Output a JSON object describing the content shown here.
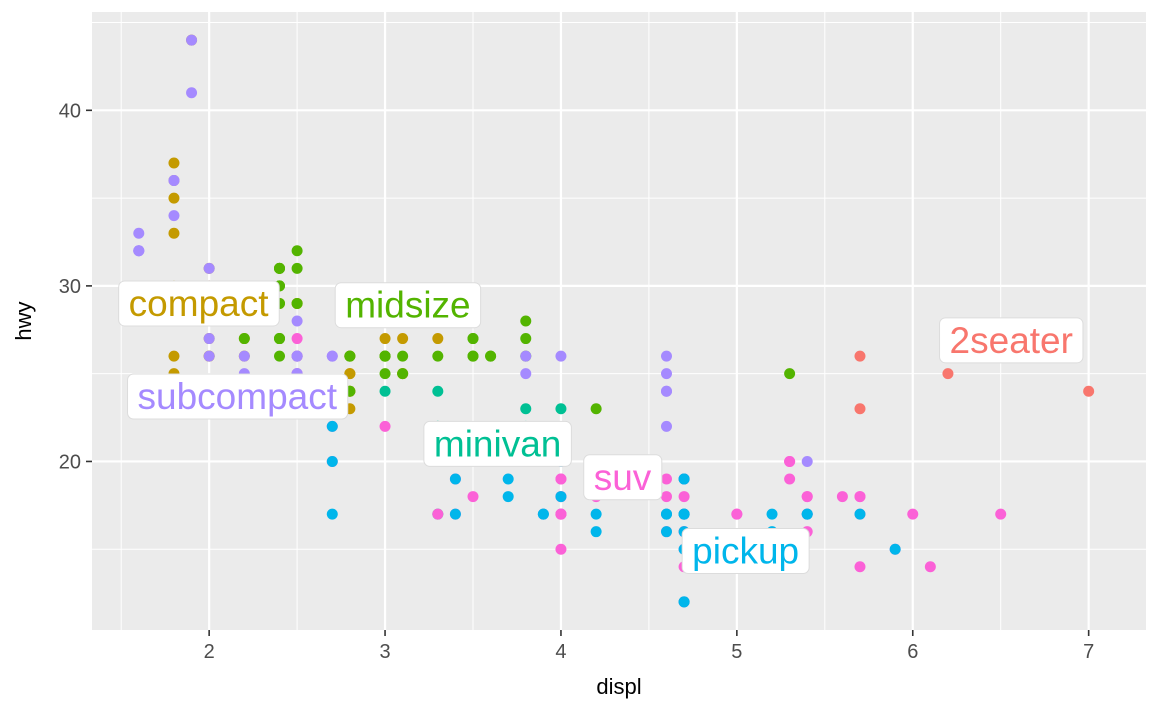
{
  "chart_data": {
    "type": "scatter",
    "xlabel": "displ",
    "ylabel": "hwy",
    "xlim": [
      1.334,
      7.326
    ],
    "ylim": [
      10.4,
      45.6
    ],
    "x_major_ticks": [
      2,
      3,
      4,
      5,
      6,
      7
    ],
    "x_minor_ticks": [
      1.5,
      2.5,
      3.5,
      4.5,
      5.5,
      6.5
    ],
    "y_major_ticks": [
      20,
      30,
      40
    ],
    "y_minor_ticks": [
      15,
      25,
      35,
      45
    ],
    "panel_bg": "#EBEBEB",
    "grid_color": "#FFFFFF",
    "tick_color": "#333333",
    "tick_label_color": "#4D4D4D",
    "legend": "none",
    "series": [
      {
        "name": "compact",
        "color": "#C49A00",
        "points": [
          [
            1.8,
            29
          ],
          [
            1.8,
            29
          ],
          [
            2.0,
            31
          ],
          [
            2.0,
            30
          ],
          [
            2.8,
            26
          ],
          [
            2.8,
            26
          ],
          [
            3.1,
            27
          ],
          [
            1.8,
            26
          ],
          [
            1.8,
            25
          ],
          [
            2.0,
            28
          ],
          [
            2.0,
            27
          ],
          [
            2.8,
            25
          ],
          [
            2.8,
            25
          ],
          [
            3.1,
            25
          ],
          [
            3.1,
            25
          ],
          [
            2.2,
            26
          ],
          [
            2.2,
            27
          ],
          [
            2.4,
            29
          ],
          [
            2.4,
            31
          ],
          [
            3.0,
            26
          ],
          [
            3.0,
            27
          ],
          [
            3.3,
            27
          ],
          [
            1.8,
            30
          ],
          [
            1.8,
            33
          ],
          [
            1.8,
            35
          ],
          [
            1.8,
            36
          ],
          [
            1.8,
            37
          ],
          [
            2.0,
            26
          ],
          [
            2.0,
            29
          ],
          [
            2.0,
            28
          ],
          [
            2.0,
            29
          ],
          [
            2.8,
            24
          ],
          [
            1.9,
            44
          ],
          [
            2.0,
            26
          ],
          [
            2.0,
            29
          ],
          [
            2.0,
            28
          ],
          [
            2.0,
            29
          ],
          [
            2.5,
            29
          ],
          [
            2.5,
            29
          ],
          [
            2.8,
            23
          ],
          [
            2.8,
            24
          ]
        ]
      },
      {
        "name": "midsize",
        "color": "#53B400",
        "points": [
          [
            2.8,
            24
          ],
          [
            3.1,
            25
          ],
          [
            4.2,
            23
          ],
          [
            2.4,
            27
          ],
          [
            2.4,
            30
          ],
          [
            3.1,
            29
          ],
          [
            3.5,
            27
          ],
          [
            3.6,
            26
          ],
          [
            2.4,
            26
          ],
          [
            2.4,
            27
          ],
          [
            2.4,
            30
          ],
          [
            2.4,
            31
          ],
          [
            2.5,
            26
          ],
          [
            2.5,
            29
          ],
          [
            3.3,
            26
          ],
          [
            2.4,
            29
          ],
          [
            2.4,
            27
          ],
          [
            2.5,
            31
          ],
          [
            2.5,
            32
          ],
          [
            3.5,
            26
          ],
          [
            3.5,
            27
          ],
          [
            3.0,
            25
          ],
          [
            3.0,
            26
          ],
          [
            3.5,
            26
          ],
          [
            3.1,
            26
          ],
          [
            3.8,
            26
          ],
          [
            3.8,
            27
          ],
          [
            3.8,
            28
          ],
          [
            5.3,
            25
          ],
          [
            2.2,
            27
          ],
          [
            2.2,
            29
          ],
          [
            2.4,
            31
          ],
          [
            2.4,
            31
          ],
          [
            3.0,
            26
          ],
          [
            3.0,
            26
          ],
          [
            3.5,
            28
          ],
          [
            1.8,
            29
          ],
          [
            1.8,
            29
          ],
          [
            2.0,
            28
          ],
          [
            2.0,
            29
          ],
          [
            2.8,
            26
          ],
          [
            2.8,
            26
          ],
          [
            3.6,
            26
          ]
        ]
      },
      {
        "name": "minivan",
        "color": "#00C094",
        "points": [
          [
            2.4,
            24
          ],
          [
            3.0,
            24
          ],
          [
            3.3,
            22
          ],
          [
            3.3,
            22
          ],
          [
            3.3,
            24
          ],
          [
            3.3,
            22
          ],
          [
            3.3,
            17
          ],
          [
            3.8,
            22
          ],
          [
            3.8,
            21
          ],
          [
            3.8,
            23
          ],
          [
            4.0,
            23
          ]
        ]
      },
      {
        "name": "suv",
        "color": "#FB61D7",
        "points": [
          [
            5.3,
            20
          ],
          [
            5.3,
            15
          ],
          [
            5.3,
            20
          ],
          [
            5.7,
            17
          ],
          [
            6.0,
            17
          ],
          [
            5.3,
            14
          ],
          [
            5.3,
            19
          ],
          [
            5.7,
            14
          ],
          [
            6.5,
            17
          ],
          [
            3.9,
            17
          ],
          [
            4.7,
            17
          ],
          [
            4.7,
            12
          ],
          [
            4.7,
            17
          ],
          [
            4.7,
            16
          ],
          [
            4.7,
            18
          ],
          [
            5.2,
            15
          ],
          [
            5.9,
            15
          ],
          [
            4.6,
            17
          ],
          [
            5.4,
            17
          ],
          [
            5.4,
            18
          ],
          [
            4.0,
            17
          ],
          [
            4.0,
            17
          ],
          [
            4.0,
            18
          ],
          [
            4.0,
            17
          ],
          [
            4.6,
            19
          ],
          [
            5.0,
            17
          ],
          [
            3.0,
            22
          ],
          [
            4.0,
            19
          ],
          [
            4.7,
            19
          ],
          [
            4.7,
            14
          ],
          [
            4.7,
            15
          ],
          [
            4.7,
            17
          ],
          [
            5.7,
            18
          ],
          [
            6.1,
            14
          ],
          [
            4.0,
            15
          ],
          [
            4.2,
            18
          ],
          [
            4.4,
            19
          ],
          [
            4.6,
            16
          ],
          [
            5.4,
            16
          ],
          [
            5.4,
            17
          ],
          [
            5.4,
            18
          ],
          [
            4.0,
            17
          ],
          [
            4.0,
            19
          ],
          [
            4.6,
            18
          ],
          [
            5.0,
            17
          ],
          [
            3.3,
            17
          ],
          [
            3.5,
            18
          ],
          [
            4.0,
            18
          ],
          [
            5.6,
            18
          ],
          [
            2.5,
            26
          ],
          [
            2.5,
            25
          ],
          [
            2.5,
            24
          ],
          [
            2.5,
            27
          ],
          [
            2.5,
            25
          ],
          [
            2.5,
            26
          ],
          [
            2.7,
            20
          ],
          [
            2.7,
            22
          ],
          [
            3.4,
            19
          ],
          [
            3.4,
            17
          ],
          [
            4.0,
            20
          ],
          [
            4.7,
            19
          ],
          [
            4.7,
            16
          ],
          [
            5.7,
            18
          ]
        ]
      },
      {
        "name": "pickup",
        "color": "#00B6EB",
        "points": [
          [
            3.7,
            19
          ],
          [
            3.7,
            18
          ],
          [
            3.9,
            17
          ],
          [
            3.9,
            17
          ],
          [
            4.7,
            19
          ],
          [
            4.7,
            19
          ],
          [
            4.7,
            12
          ],
          [
            5.2,
            17
          ],
          [
            5.2,
            15
          ],
          [
            4.7,
            16
          ],
          [
            4.7,
            12
          ],
          [
            4.7,
            17
          ],
          [
            4.7,
            15
          ],
          [
            4.7,
            17
          ],
          [
            4.7,
            17
          ],
          [
            5.2,
            16
          ],
          [
            5.2,
            15
          ],
          [
            5.7,
            17
          ],
          [
            5.9,
            15
          ],
          [
            4.2,
            17
          ],
          [
            4.2,
            16
          ],
          [
            4.6,
            17
          ],
          [
            4.6,
            16
          ],
          [
            4.6,
            17
          ],
          [
            5.4,
            17
          ],
          [
            5.4,
            17
          ],
          [
            2.7,
            20
          ],
          [
            2.7,
            22
          ],
          [
            2.7,
            17
          ],
          [
            3.4,
            19
          ],
          [
            3.4,
            17
          ],
          [
            4.0,
            18
          ],
          [
            4.0,
            20
          ]
        ]
      },
      {
        "name": "subcompact",
        "color": "#A58AFF",
        "points": [
          [
            1.6,
            33
          ],
          [
            1.6,
            32
          ],
          [
            1.6,
            32
          ],
          [
            1.6,
            29
          ],
          [
            1.6,
            32
          ],
          [
            1.8,
            34
          ],
          [
            1.8,
            36
          ],
          [
            1.8,
            36
          ],
          [
            2.0,
            29
          ],
          [
            1.9,
            44
          ],
          [
            1.9,
            41
          ],
          [
            2.0,
            29
          ],
          [
            2.0,
            29
          ],
          [
            2.5,
            26
          ],
          [
            2.5,
            28
          ],
          [
            2.0,
            26
          ],
          [
            2.0,
            27
          ],
          [
            2.0,
            30
          ],
          [
            2.0,
            31
          ],
          [
            2.7,
            26
          ],
          [
            2.7,
            26
          ],
          [
            2.7,
            24
          ],
          [
            3.8,
            26
          ],
          [
            3.8,
            25
          ],
          [
            4.0,
            26
          ],
          [
            4.6,
            24
          ],
          [
            4.6,
            25
          ],
          [
            4.6,
            26
          ],
          [
            4.6,
            24
          ],
          [
            4.6,
            22
          ],
          [
            5.4,
            20
          ],
          [
            2.2,
            26
          ],
          [
            2.2,
            25
          ],
          [
            2.5,
            25
          ],
          [
            2.5,
            25
          ],
          [
            2.5,
            26
          ],
          [
            2.5,
            23
          ]
        ]
      },
      {
        "name": "2seater",
        "color": "#F8766D",
        "points": [
          [
            5.7,
            26
          ],
          [
            5.7,
            23
          ],
          [
            6.2,
            26
          ],
          [
            6.2,
            25
          ],
          [
            7.0,
            24
          ]
        ]
      }
    ],
    "annotations": [
      {
        "label": "compact",
        "x": 1.94,
        "y": 29.0,
        "color": "#C49A00"
      },
      {
        "label": "midsize",
        "x": 3.13,
        "y": 28.9,
        "color": "#53B400"
      },
      {
        "label": "subcompact",
        "x": 2.16,
        "y": 23.7,
        "color": "#A58AFF"
      },
      {
        "label": "minivan",
        "x": 3.64,
        "y": 21.0,
        "color": "#00C094"
      },
      {
        "label": "suv",
        "x": 4.35,
        "y": 19.1,
        "color": "#FB61D7"
      },
      {
        "label": "pickup",
        "x": 5.05,
        "y": 14.9,
        "color": "#00B6EB"
      },
      {
        "label": "2seater",
        "x": 6.56,
        "y": 26.9,
        "color": "#F8766D"
      }
    ]
  }
}
